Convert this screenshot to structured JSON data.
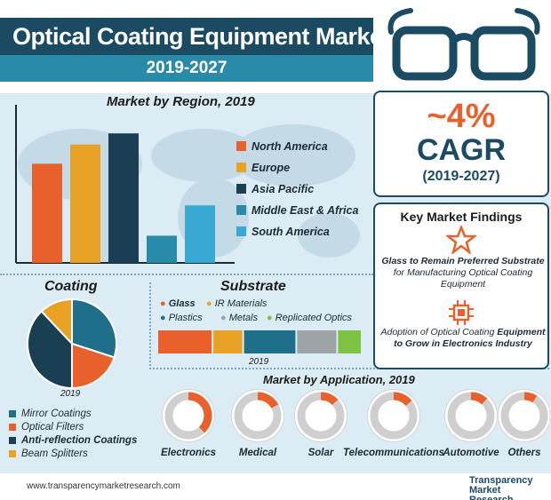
{
  "header": {
    "title": "Optical Coating Equipment Market",
    "years": "2019-2027"
  },
  "cagr": {
    "value": "~4%",
    "label": "CAGR",
    "period": "(2019-2027)"
  },
  "findings": {
    "title": "Key Market Findings",
    "item1_bold": "Glass to Remain Preferred Substrate",
    "item1_rest": "for Manufacturing Optical Coating Equipment",
    "item2_start": "Adoption of Optical Coating",
    "item2_bold": "Equipment to Grow in Electronics Industry",
    "star_icon": "star-icon",
    "circuit_icon": "circuit-icon"
  },
  "colors": {
    "navy": "#1b4a63",
    "orange": "#e8612c",
    "amber": "#e9a126",
    "teal": "#2a8ba8",
    "gray": "#9ea3a6",
    "green": "#7dc242",
    "dark": "#1a3f52"
  },
  "chart_data": [
    {
      "type": "bar",
      "title": "Market by Region, 2019",
      "categories": [
        "North America",
        "Europe",
        "Asia Pacific",
        "Middle East & Africa",
        "South America"
      ],
      "values": [
        62,
        74,
        81,
        17,
        36
      ],
      "ylim": [
        0,
        100
      ],
      "colors": [
        "#e8612c",
        "#e9a126",
        "#1a3f52",
        "#2a8ba8",
        "#39a9d4"
      ],
      "legend_position": "right"
    },
    {
      "type": "pie",
      "title": "Coating",
      "xlabel": "2019",
      "categories": [
        "Mirror Coatings",
        "Optical Filters",
        "Anti-reflection Coatings",
        "Beam Splitters"
      ],
      "values": [
        30,
        20,
        38,
        12
      ],
      "colors": [
        "#1f6f8b",
        "#e8612c",
        "#1a3f52",
        "#e9a126"
      ],
      "legend_position": "bottom"
    },
    {
      "type": "bar",
      "title": "Substrate",
      "xlabel": "2019",
      "categories": [
        "Glass",
        "IR Materials",
        "Plastics",
        "Metals",
        "Replicated Optics"
      ],
      "values": [
        27,
        15,
        26,
        20,
        12
      ],
      "colors": [
        "#e8612c",
        "#e9a126",
        "#1f6f8b",
        "#9ea3a6",
        "#7dc242"
      ],
      "stacked": true,
      "legend_position": "top"
    },
    {
      "type": "pie",
      "title": "Market by Application, 2019",
      "categories": [
        "Electronics",
        "Medical",
        "Solar",
        "Telecommunications",
        "Automotive",
        "Others"
      ],
      "values": [
        38,
        17,
        13,
        14,
        12,
        9
      ],
      "colors": [
        "#e8612c",
        "#e8612c",
        "#e8612c",
        "#e8612c",
        "#e8612c",
        "#e8612c"
      ]
    }
  ],
  "footer": {
    "url": "www.transparencymarketresearch.com",
    "brand": "Transparency Market Research"
  }
}
